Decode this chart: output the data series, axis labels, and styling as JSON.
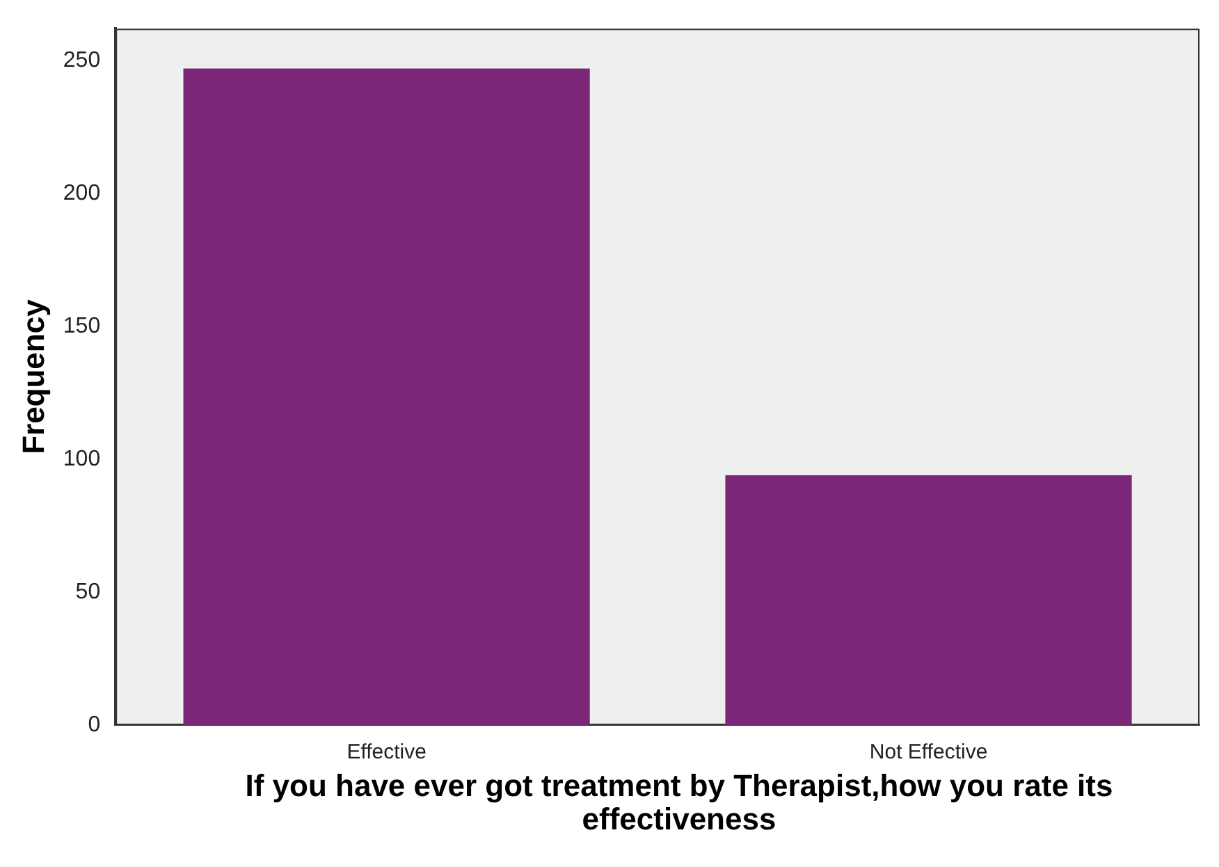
{
  "chart_data": {
    "type": "bar",
    "xlabel": "If you have ever got treatment by Therapist,how you rate its effectiveness",
    "ylabel": "Frequency",
    "categories": [
      "Effective",
      "Not Effective"
    ],
    "values": [
      247,
      94
    ],
    "color": "#7b2778",
    "ylim": [
      0,
      262
    ],
    "yticks": [
      0,
      50,
      100,
      150,
      200,
      250
    ],
    "grid": false,
    "legend": false
  }
}
